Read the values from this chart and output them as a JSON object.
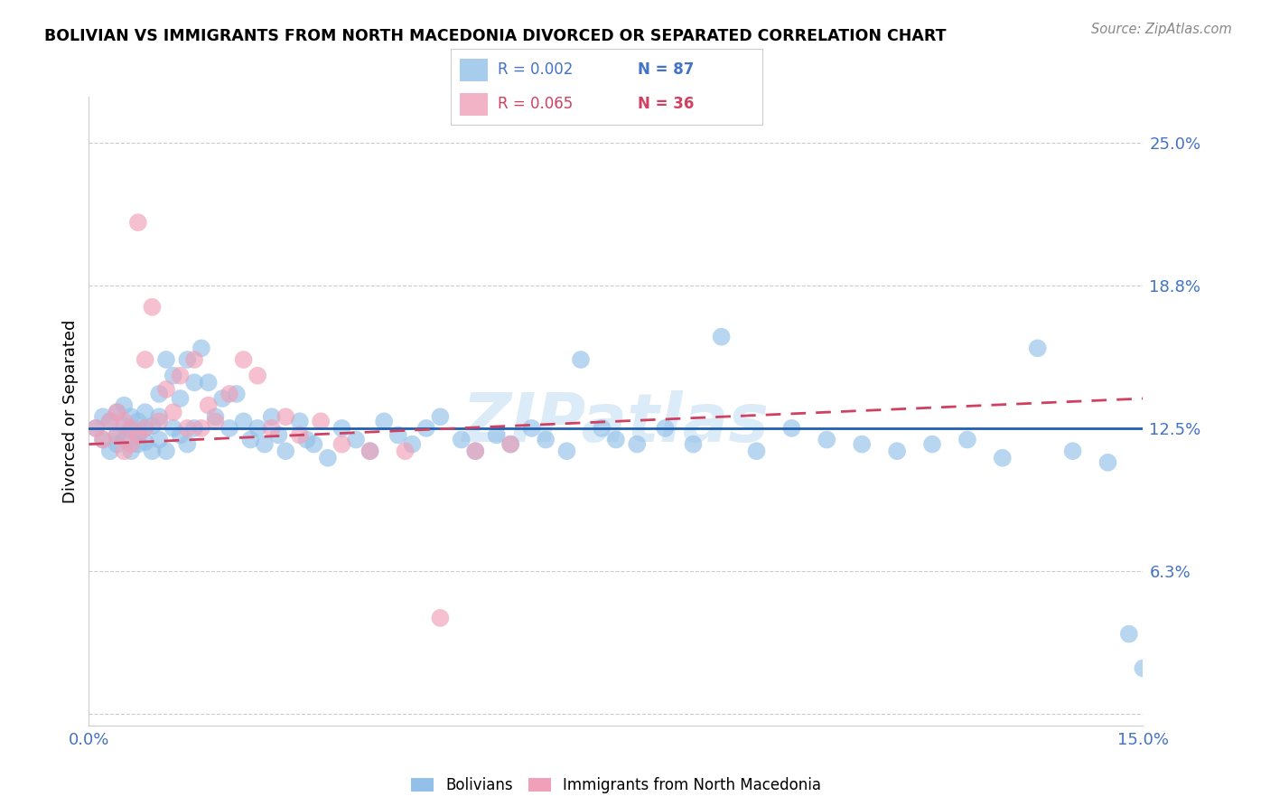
{
  "title": "BOLIVIAN VS IMMIGRANTS FROM NORTH MACEDONIA DIVORCED OR SEPARATED CORRELATION CHART",
  "source": "Source: ZipAtlas.com",
  "ylabel": "Divorced or Separated",
  "yticks": [
    0.0,
    0.0625,
    0.125,
    0.1875,
    0.25
  ],
  "ytick_labels": [
    "",
    "6.3%",
    "12.5%",
    "18.8%",
    "25.0%"
  ],
  "xmin": 0.0,
  "xmax": 0.15,
  "ymin": -0.005,
  "ymax": 0.27,
  "legend_blue_r": "R = 0.002",
  "legend_blue_n": "N = 87",
  "legend_pink_r": "R = 0.065",
  "legend_pink_n": "N = 36",
  "blue_color": "#92C0E8",
  "pink_color": "#F0A0B8",
  "trend_blue_color": "#2060B0",
  "trend_pink_color": "#D04060",
  "watermark": "ZIPatlas",
  "blue_scatter_x": [
    0.001,
    0.002,
    0.002,
    0.003,
    0.003,
    0.004,
    0.004,
    0.004,
    0.005,
    0.005,
    0.005,
    0.006,
    0.006,
    0.006,
    0.007,
    0.007,
    0.007,
    0.008,
    0.008,
    0.008,
    0.009,
    0.009,
    0.01,
    0.01,
    0.01,
    0.011,
    0.011,
    0.012,
    0.012,
    0.013,
    0.013,
    0.014,
    0.014,
    0.015,
    0.015,
    0.016,
    0.017,
    0.018,
    0.019,
    0.02,
    0.021,
    0.022,
    0.023,
    0.024,
    0.025,
    0.026,
    0.027,
    0.028,
    0.03,
    0.031,
    0.032,
    0.034,
    0.036,
    0.038,
    0.04,
    0.042,
    0.044,
    0.046,
    0.048,
    0.05,
    0.053,
    0.055,
    0.058,
    0.06,
    0.063,
    0.065,
    0.068,
    0.07,
    0.073,
    0.075,
    0.078,
    0.082,
    0.086,
    0.09,
    0.095,
    0.1,
    0.105,
    0.11,
    0.115,
    0.12,
    0.125,
    0.13,
    0.135,
    0.14,
    0.145,
    0.148,
    0.15
  ],
  "blue_scatter_y": [
    0.125,
    0.12,
    0.13,
    0.115,
    0.128,
    0.122,
    0.132,
    0.118,
    0.126,
    0.12,
    0.135,
    0.124,
    0.115,
    0.13,
    0.122,
    0.118,
    0.128,
    0.125,
    0.119,
    0.132,
    0.126,
    0.115,
    0.14,
    0.13,
    0.12,
    0.155,
    0.115,
    0.148,
    0.125,
    0.138,
    0.122,
    0.155,
    0.118,
    0.145,
    0.125,
    0.16,
    0.145,
    0.13,
    0.138,
    0.125,
    0.14,
    0.128,
    0.12,
    0.125,
    0.118,
    0.13,
    0.122,
    0.115,
    0.128,
    0.12,
    0.118,
    0.112,
    0.125,
    0.12,
    0.115,
    0.128,
    0.122,
    0.118,
    0.125,
    0.13,
    0.12,
    0.115,
    0.122,
    0.118,
    0.125,
    0.12,
    0.115,
    0.155,
    0.125,
    0.12,
    0.118,
    0.125,
    0.118,
    0.165,
    0.115,
    0.125,
    0.12,
    0.118,
    0.115,
    0.118,
    0.12,
    0.112,
    0.16,
    0.115,
    0.11,
    0.035,
    0.02
  ],
  "pink_scatter_x": [
    0.001,
    0.002,
    0.003,
    0.004,
    0.004,
    0.005,
    0.005,
    0.006,
    0.006,
    0.007,
    0.007,
    0.008,
    0.008,
    0.009,
    0.01,
    0.011,
    0.012,
    0.013,
    0.014,
    0.015,
    0.016,
    0.017,
    0.018,
    0.02,
    0.022,
    0.024,
    0.026,
    0.028,
    0.03,
    0.033,
    0.036,
    0.04,
    0.045,
    0.05,
    0.055,
    0.06
  ],
  "pink_scatter_y": [
    0.125,
    0.12,
    0.128,
    0.122,
    0.132,
    0.115,
    0.128,
    0.118,
    0.125,
    0.122,
    0.215,
    0.125,
    0.155,
    0.178,
    0.128,
    0.142,
    0.132,
    0.148,
    0.125,
    0.155,
    0.125,
    0.135,
    0.128,
    0.14,
    0.155,
    0.148,
    0.125,
    0.13,
    0.122,
    0.128,
    0.118,
    0.115,
    0.115,
    0.042,
    0.115,
    0.118
  ]
}
